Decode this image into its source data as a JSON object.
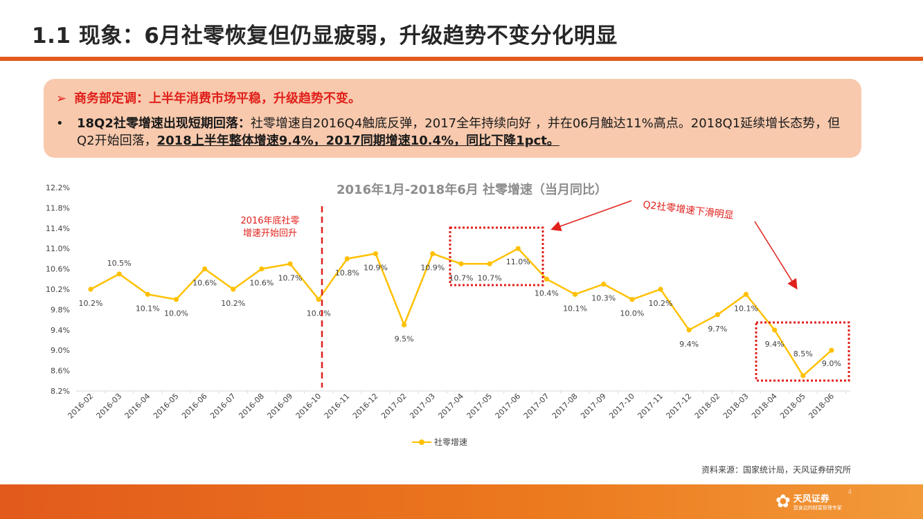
{
  "page": {
    "title": "1.1 现象：6月社零恢复但仍显疲弱，升级趋势不变分化明显",
    "page_number": "4"
  },
  "callout": {
    "arrow": "➢",
    "line1": "商务部定调：上半年消费市场平稳，升级趋势不变。",
    "bullet": "•",
    "line2_bold": "18Q2社零增速出现短期回落：",
    "line2_text": "社零增速自2016Q4触底反弹，2017全年持续向好 ，并在06月触达11%高点。2018Q1延续增长态势，但Q2开始回落，",
    "line2_underline": "2018上半年整体增速9.4%，2017同期增速10.4%，同比下降1pct。"
  },
  "chart_data": {
    "type": "line",
    "title": "2016年1月-2018年6月 社零增速（当月同比）",
    "categories": [
      "2016-02",
      "2016-03",
      "2016-04",
      "2016-05",
      "2016-06",
      "2016-07",
      "2016-08",
      "2016-09",
      "2016-10",
      "2016-11",
      "2016-12",
      "2017-02",
      "2017-03",
      "2017-04",
      "2017-05",
      "2017-06",
      "2017-07",
      "2017-08",
      "2017-09",
      "2017-10",
      "2017-11",
      "2017-12",
      "2018-02",
      "2018-03",
      "2018-04",
      "2018-05",
      "2018-06"
    ],
    "series": [
      {
        "name": "社零增速",
        "values": [
          10.2,
          10.5,
          10.1,
          10.0,
          10.6,
          10.2,
          10.6,
          10.7,
          10.0,
          10.8,
          10.9,
          9.5,
          10.9,
          10.7,
          10.7,
          11.0,
          10.4,
          10.1,
          10.3,
          10.0,
          10.2,
          9.4,
          9.7,
          10.1,
          9.4,
          8.5,
          9.0
        ],
        "color": "#ffc000"
      }
    ],
    "data_labels": [
      "10.2%",
      "10.5%",
      "10.1%",
      "10.0%",
      "10.6%",
      "10.2%",
      "10.6%",
      "10.7%",
      "10.0%",
      "10.8%",
      "10.9%",
      "9.5%",
      "10.9%",
      "10.7%",
      "10.7%",
      "11.0%",
      "10.4%",
      "10.1%",
      "10.3%",
      "10.0%",
      "10.2%",
      "9.4%",
      "9.7%",
      "10.1%",
      "9.4%",
      "8.5%",
      "9.0%"
    ],
    "ylim": [
      8.2,
      12.2
    ],
    "yticks": [
      "12.2%",
      "11.8%",
      "11.4%",
      "11.0%",
      "10.6%",
      "10.2%",
      "9.8%",
      "9.4%",
      "9.0%",
      "8.6%",
      "8.2%"
    ],
    "legend": "bottom",
    "annotations": [
      {
        "text_line1": "2016年底社零",
        "text_line2": "增速开始回升",
        "color": "#e0201b"
      },
      {
        "text": "Q2社零增速下滑明显",
        "color": "#e0201b"
      }
    ]
  },
  "source": "资料来源：国家统计局，天风证券研究所",
  "logo": {
    "name": "天风证券",
    "slogan": "您身边的财富管理专家"
  }
}
